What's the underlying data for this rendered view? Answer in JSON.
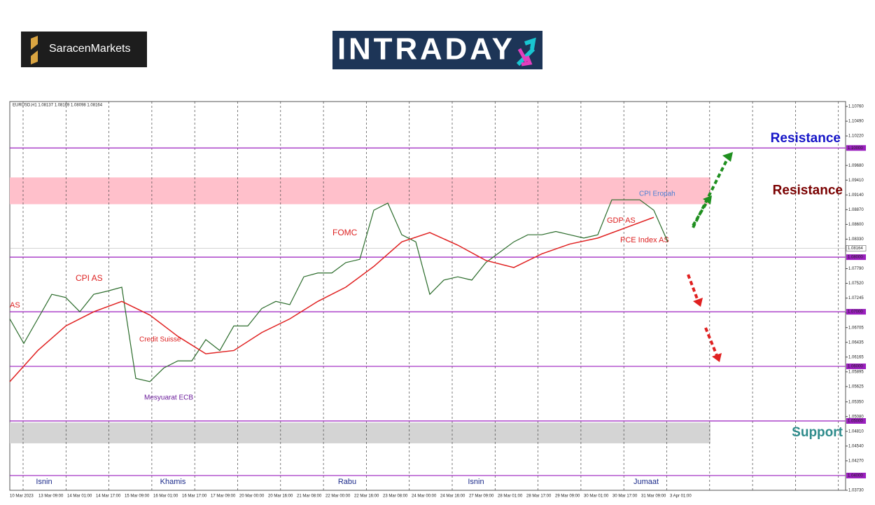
{
  "brand": "SaracenMarkets",
  "logo": "INTRADAY",
  "chart_data": {
    "type": "line",
    "header": "EURUSD,H1  1.08137 1.08169 1.08098 1.08164",
    "xtick_labels": [
      "10 Mar 2023",
      "13 Mar 09:00",
      "14 Mar 01:00",
      "14 Mar 17:00",
      "15 Mar 09:00",
      "16 Mar 01:00",
      "16 Mar 17:00",
      "17 Mar 09:00",
      "20 Mar 00:00",
      "20 Mar 16:00",
      "21 Mar 08:00",
      "22 Mar 00:00",
      "22 Mar 16:00",
      "23 Mar 08:00",
      "24 Mar 00:00",
      "24 Mar 16:00",
      "27 Mar 09:00",
      "28 Mar 01:00",
      "28 Mar 17:00",
      "29 Mar 09:00",
      "30 Mar 01:00",
      "30 Mar 17:00",
      "31 Mar 09:00",
      "3 Apr 01:00"
    ],
    "day_labels": [
      "Isnin",
      "Khamis",
      "Rabu",
      "Isnin",
      "Jumaat"
    ],
    "series": [
      {
        "name": "EURUSD",
        "color": "#2a6b2a",
        "values": [
          1.0687,
          1.0642,
          1.0687,
          1.0732,
          1.0726,
          1.07,
          1.0732,
          1.0738,
          1.0745,
          1.0578,
          1.0572,
          1.0597,
          1.061,
          1.061,
          1.0649,
          1.0629,
          1.0674,
          1.0674,
          1.0706,
          1.0719,
          1.0713,
          1.0764,
          1.0771,
          1.0771,
          1.079,
          1.0796,
          1.0886,
          1.0899,
          1.0841,
          1.0828,
          1.0732,
          1.0758,
          1.0764,
          1.0758,
          1.079,
          1.0809,
          1.0828,
          1.0841,
          1.0841,
          1.0847,
          1.0841,
          1.0835,
          1.0841,
          1.0905,
          1.0905,
          1.0905,
          1.0886,
          1.0828
        ]
      },
      {
        "name": "MA",
        "color": "#e02020",
        "x": [
          0,
          2,
          4,
          6,
          8,
          10,
          12,
          14,
          16,
          18,
          20,
          22,
          24,
          26,
          28,
          30,
          32,
          34,
          36,
          38,
          40,
          42,
          44,
          46
        ],
        "values": [
          1.0572,
          1.0629,
          1.0674,
          1.07,
          1.0719,
          1.0694,
          1.0655,
          1.0623,
          1.0629,
          1.0662,
          1.0687,
          1.0719,
          1.0745,
          1.0783,
          1.0828,
          1.0845,
          1.0822,
          1.0794,
          1.0781,
          1.0806,
          1.0824,
          1.0835,
          1.0854,
          1.0873
        ]
      }
    ],
    "ylim": [
      1.0373,
      1.1085
    ],
    "yticks": [
      {
        "value": 1.1076,
        "label": "1.10760"
      },
      {
        "value": 1.1049,
        "label": "1.10490"
      },
      {
        "value": 1.1022,
        "label": "1.10220"
      },
      {
        "value": 1.0968,
        "label": "1.09680"
      },
      {
        "value": 1.0941,
        "label": "1.09410"
      },
      {
        "value": 1.0914,
        "label": "1.09140"
      },
      {
        "value": 1.0887,
        "label": "1.08870"
      },
      {
        "value": 1.086,
        "label": "1.08600"
      },
      {
        "value": 1.0833,
        "label": "1.08330"
      },
      {
        "value": 1.0779,
        "label": "1.07790"
      },
      {
        "value": 1.0752,
        "label": "1.07520"
      },
      {
        "value": 1.0725,
        "label": "1.07245"
      },
      {
        "value": 1.0698,
        "label": "1.06975"
      },
      {
        "value": 1.0671,
        "label": "1.06705"
      },
      {
        "value": 1.0644,
        "label": "1.06435"
      },
      {
        "value": 1.0617,
        "label": "1.06165"
      },
      {
        "value": 1.059,
        "label": "1.05895"
      },
      {
        "value": 1.0563,
        "label": "1.05625"
      },
      {
        "value": 1.0535,
        "label": "1.05350"
      },
      {
        "value": 1.0508,
        "label": "1.05080"
      },
      {
        "value": 1.0481,
        "label": "1.04810"
      },
      {
        "value": 1.0454,
        "label": "1.04540"
      },
      {
        "value": 1.0427,
        "label": "1.04270"
      },
      {
        "value": 1.0373,
        "label": "1.03730"
      }
    ],
    "levels": [
      {
        "value": 1.1,
        "label": "1.10000"
      },
      {
        "value": 1.08,
        "label": "1.08000"
      },
      {
        "value": 1.07,
        "label": "1.07000"
      },
      {
        "value": 1.06,
        "label": "1.06000"
      },
      {
        "value": 1.05,
        "label": "1.05000"
      },
      {
        "value": 1.04,
        "label": "1.04000"
      }
    ],
    "level_color": "#9b1fbf",
    "current": {
      "value": 1.08164,
      "label": "1.08164"
    },
    "zones": [
      {
        "name": "Resistance",
        "low": 1.0897,
        "high": 1.0946,
        "color": "#ffc0cb",
        "text_color": "#7a0000"
      },
      {
        "name": "Support",
        "low": 1.0459,
        "high": 1.0497,
        "color": "#d4d4d4",
        "text_color": "#2e8b8b"
      }
    ],
    "resistance_top": "Resistance",
    "annotations": [
      "AS",
      "CPI AS",
      "Credit Suisse",
      "Mesyuarat ECB",
      "FOMC",
      "GDP AS",
      "PCE Index AS",
      "CPI Eropah"
    ]
  }
}
